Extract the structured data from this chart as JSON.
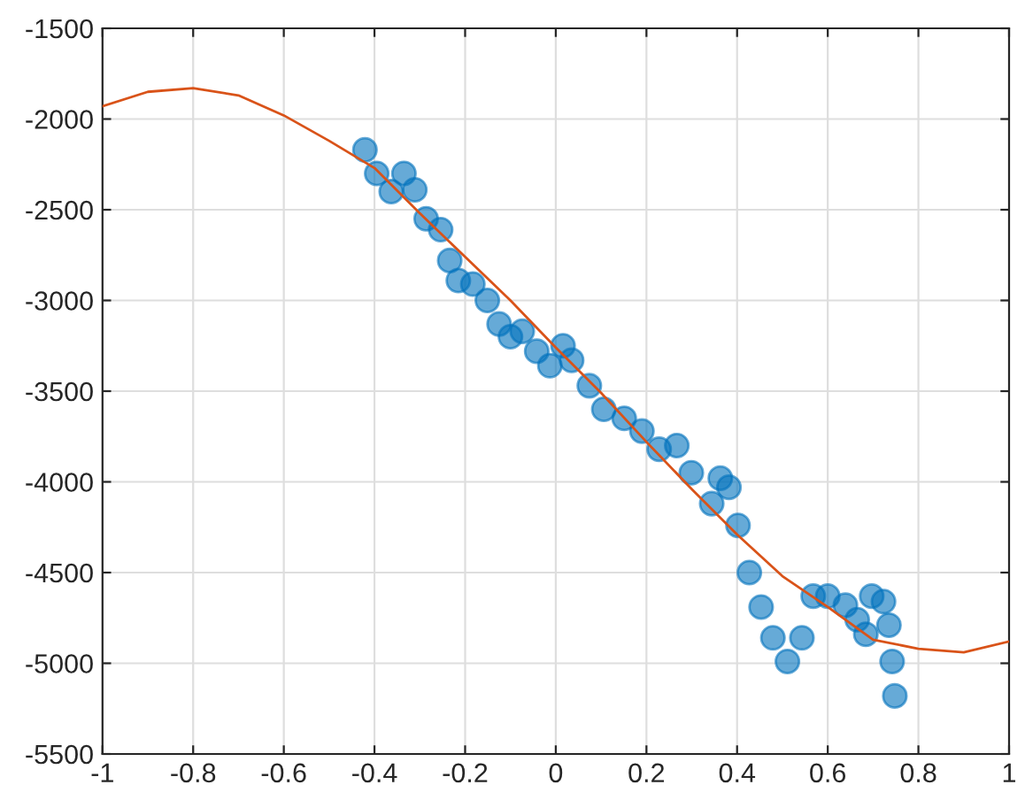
{
  "chart_data": {
    "type": "scatter",
    "xlim": [
      -1,
      1
    ],
    "ylim": [
      -5500,
      -1500
    ],
    "xticks": [
      -1,
      -0.8,
      -0.6,
      -0.4,
      -0.2,
      0,
      0.2,
      0.4,
      0.6,
      0.8,
      1
    ],
    "yticks": [
      -5500,
      -5000,
      -4500,
      -4000,
      -3500,
      -3000,
      -2500,
      -2000,
      -1500
    ],
    "grid": true,
    "series": [
      {
        "color": "#0072bd",
        "marker": "circle",
        "x": [
          -0.421,
          -0.395,
          -0.363,
          -0.335,
          -0.311,
          -0.286,
          -0.254,
          -0.234,
          -0.215,
          -0.183,
          -0.151,
          -0.125,
          -0.1,
          -0.074,
          -0.042,
          -0.013,
          0.016,
          0.035,
          0.074,
          0.106,
          0.151,
          0.19,
          0.228,
          0.267,
          0.299,
          0.344,
          0.363,
          0.382,
          0.402,
          0.427,
          0.453,
          0.479,
          0.511,
          0.543,
          0.568,
          0.6,
          0.639,
          0.665,
          0.684,
          0.697,
          0.723,
          0.735,
          0.742,
          0.748
        ],
        "values": [
          -2170,
          -2300,
          -2400,
          -2300,
          -2390,
          -2550,
          -2610,
          -2780,
          -2890,
          -2910,
          -3000,
          -3130,
          -3200,
          -3170,
          -3280,
          -3360,
          -3250,
          -3330,
          -3470,
          -3600,
          -3650,
          -3720,
          -3820,
          -3800,
          -3950,
          -4120,
          -3980,
          -4030,
          -4240,
          -4500,
          -4690,
          -4860,
          -4990,
          -4860,
          -4630,
          -4630,
          -4680,
          -4760,
          -4840,
          -4630,
          -4660,
          -4790,
          -4990,
          -5180
        ]
      },
      {
        "type": "line",
        "color": "#d95319",
        "x": [
          -1,
          -0.9,
          -0.8,
          -0.7,
          -0.6,
          -0.5,
          -0.4,
          -0.3,
          -0.2,
          -0.1,
          0,
          0.1,
          0.2,
          0.3,
          0.4,
          0.5,
          0.6,
          0.7,
          0.8,
          0.9,
          1
        ],
        "values": [
          -1930,
          -1850,
          -1830,
          -1870,
          -1980,
          -2120,
          -2270,
          -2520,
          -2760,
          -3000,
          -3260,
          -3510,
          -3780,
          -4040,
          -4290,
          -4520,
          -4690,
          -4870,
          -4920,
          -4940,
          -4880
        ]
      }
    ]
  }
}
